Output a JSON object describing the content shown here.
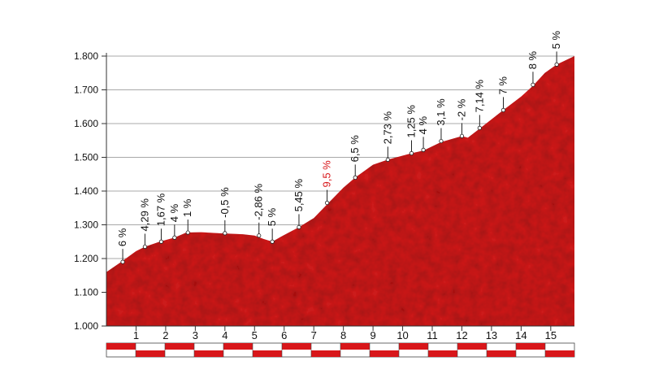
{
  "chart_data": {
    "type": "area",
    "title": "",
    "xlabel": "",
    "ylabel": "",
    "xlim": [
      0,
      15.8
    ],
    "ylim": [
      1000,
      1800
    ],
    "y_ticks": [
      {
        "value": 1000,
        "label": "1.000"
      },
      {
        "value": 1100,
        "label": "1.100"
      },
      {
        "value": 1200,
        "label": "1.200"
      },
      {
        "value": 1300,
        "label": "1.300"
      },
      {
        "value": 1400,
        "label": "1.400"
      },
      {
        "value": 1500,
        "label": "1.500"
      },
      {
        "value": 1600,
        "label": "1.600"
      },
      {
        "value": 1700,
        "label": "1.700"
      },
      {
        "value": 1800,
        "label": "1.800"
      }
    ],
    "x_ticks": [
      {
        "value": 1,
        "label": "1"
      },
      {
        "value": 2,
        "label": "2"
      },
      {
        "value": 3,
        "label": "3"
      },
      {
        "value": 4,
        "label": "4"
      },
      {
        "value": 5,
        "label": "5"
      },
      {
        "value": 6,
        "label": "6"
      },
      {
        "value": 7,
        "label": "7"
      },
      {
        "value": 8,
        "label": "8"
      },
      {
        "value": 9,
        "label": "9"
      },
      {
        "value": 10,
        "label": "10"
      },
      {
        "value": 11,
        "label": "11"
      },
      {
        "value": 12,
        "label": "12"
      },
      {
        "value": 13,
        "label": "13"
      },
      {
        "value": 14,
        "label": "14"
      },
      {
        "value": 15,
        "label": "15"
      }
    ],
    "grid": true,
    "fill_color": "#cc1a1e",
    "highlight_color": "#d8161a",
    "profile": [
      {
        "x": 0.0,
        "y": 1160
      },
      {
        "x": 0.5,
        "y": 1190
      },
      {
        "x": 1.0,
        "y": 1222
      },
      {
        "x": 1.3,
        "y": 1235
      },
      {
        "x": 1.8,
        "y": 1250
      },
      {
        "x": 2.3,
        "y": 1262
      },
      {
        "x": 2.7,
        "y": 1277
      },
      {
        "x": 3.2,
        "y": 1278
      },
      {
        "x": 3.8,
        "y": 1275
      },
      {
        "x": 4.6,
        "y": 1272
      },
      {
        "x": 5.0,
        "y": 1268
      },
      {
        "x": 5.3,
        "y": 1258
      },
      {
        "x": 5.6,
        "y": 1250
      },
      {
        "x": 5.9,
        "y": 1265
      },
      {
        "x": 6.5,
        "y": 1293
      },
      {
        "x": 7.0,
        "y": 1320
      },
      {
        "x": 7.5,
        "y": 1365
      },
      {
        "x": 8.0,
        "y": 1410
      },
      {
        "x": 8.4,
        "y": 1440
      },
      {
        "x": 9.0,
        "y": 1478
      },
      {
        "x": 9.5,
        "y": 1493
      },
      {
        "x": 10.3,
        "y": 1512
      },
      {
        "x": 10.7,
        "y": 1520
      },
      {
        "x": 11.3,
        "y": 1545
      },
      {
        "x": 12.0,
        "y": 1563
      },
      {
        "x": 12.2,
        "y": 1558
      },
      {
        "x": 12.6,
        "y": 1585
      },
      {
        "x": 13.4,
        "y": 1640
      },
      {
        "x": 14.0,
        "y": 1680
      },
      {
        "x": 14.4,
        "y": 1712
      },
      {
        "x": 14.8,
        "y": 1750
      },
      {
        "x": 15.2,
        "y": 1775
      },
      {
        "x": 15.8,
        "y": 1800
      }
    ],
    "gradients": [
      {
        "x": 0.55,
        "y": 1190,
        "label": "6 %"
      },
      {
        "x": 1.3,
        "y": 1235,
        "label": "4,29 %"
      },
      {
        "x": 1.85,
        "y": 1250,
        "label": "1,67 %"
      },
      {
        "x": 2.3,
        "y": 1262,
        "label": "4 %"
      },
      {
        "x": 2.75,
        "y": 1277,
        "label": "1 %"
      },
      {
        "x": 4.0,
        "y": 1275,
        "label": "-0,5 %"
      },
      {
        "x": 5.15,
        "y": 1268,
        "label": "-2,86 %"
      },
      {
        "x": 5.6,
        "y": 1250,
        "label": "5 %"
      },
      {
        "x": 6.5,
        "y": 1293,
        "label": "5,45 %"
      },
      {
        "x": 7.45,
        "y": 1365,
        "label": "9,5 %",
        "highlight": true
      },
      {
        "x": 8.4,
        "y": 1440,
        "label": "6,5 %"
      },
      {
        "x": 9.5,
        "y": 1493,
        "label": "2,73 %"
      },
      {
        "x": 10.3,
        "y": 1512,
        "label": "1,25 %"
      },
      {
        "x": 10.7,
        "y": 1522,
        "label": "4 %"
      },
      {
        "x": 11.3,
        "y": 1548,
        "label": "3,1 %"
      },
      {
        "x": 12.0,
        "y": 1563,
        "label": "-2 %"
      },
      {
        "x": 12.6,
        "y": 1587,
        "label": "7,14 %"
      },
      {
        "x": 13.4,
        "y": 1640,
        "label": "7 %"
      },
      {
        "x": 14.4,
        "y": 1715,
        "label": "8 %"
      },
      {
        "x": 15.2,
        "y": 1775,
        "label": "5 %"
      }
    ],
    "km_bar_segments": 16
  }
}
